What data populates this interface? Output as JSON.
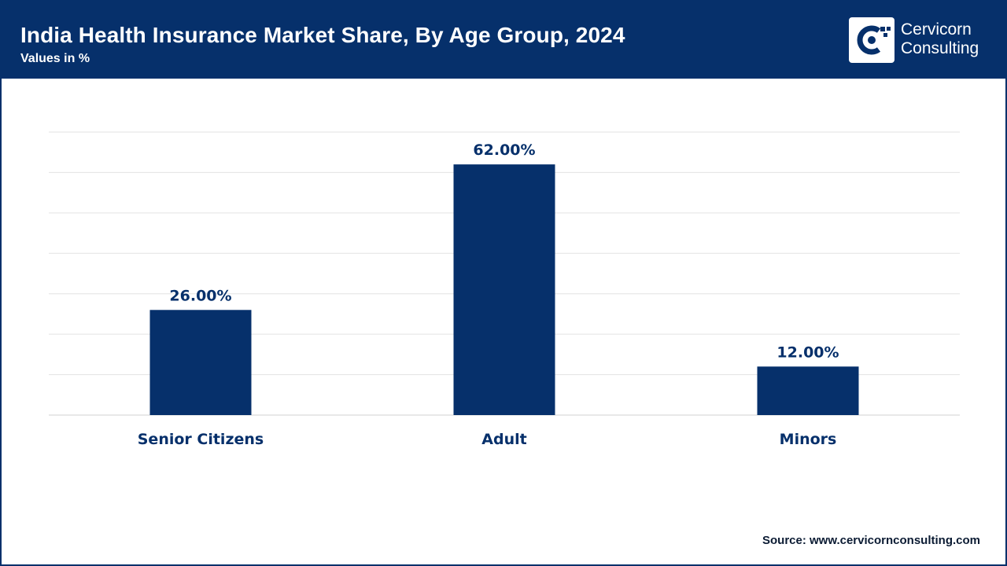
{
  "header": {
    "title": "India Health Insurance Market Share, By Age Group, 2024",
    "subtitle": "Values in %"
  },
  "logo": {
    "line1": "Cervicorn",
    "line2": "Consulting",
    "icon": "cervicorn-logo-icon"
  },
  "colors": {
    "brand": "#06306b",
    "bar": "#06306b",
    "grid": "#e3e3e3",
    "axis": "#d0d0d0"
  },
  "chart_data": {
    "type": "bar",
    "categories": [
      "Senior Citizens",
      "Adult",
      "Minors"
    ],
    "values": [
      26,
      62,
      12
    ],
    "data_labels": [
      "26.00%",
      "62.00%",
      "12.00%"
    ],
    "ylim": [
      0,
      70
    ],
    "grid": true,
    "legend": "none",
    "title": "India Health Insurance Market Share, By Age Group, 2024",
    "xlabel": "",
    "ylabel": ""
  },
  "footer": {
    "source": "Source: www.cervicornconsulting.com"
  }
}
